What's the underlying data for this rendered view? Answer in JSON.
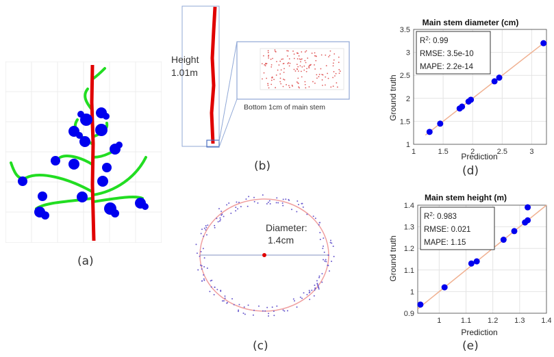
{
  "panels": {
    "a": {
      "label": "(a)"
    },
    "b": {
      "label": "(b)",
      "height_label": "Height",
      "height_value": "1.01m",
      "zoom_caption": "Bottom 1cm of main stem"
    },
    "c": {
      "label": "(c)",
      "diameter_label": "Diameter:",
      "diameter_value": "1.4cm"
    },
    "d": {
      "label": "(d)"
    },
    "e": {
      "label": "(e)"
    }
  },
  "colors": {
    "stem": "#e00000",
    "branch": "#22dd22",
    "flower": "#0000ee",
    "fit_line": "#f0b090",
    "marker": "#0000ee",
    "circle": "#f0a0a0",
    "points": "#6a5acd"
  },
  "chart_data": [
    {
      "id": "d",
      "type": "scatter",
      "title": "Main stem diameter (cm)",
      "xlabel": "Prediction",
      "ylabel": "Ground truth",
      "xlim": [
        1,
        3.25
      ],
      "ylim": [
        1,
        3.5
      ],
      "xticks": [
        1,
        1.5,
        2,
        2.5,
        3
      ],
      "xtick_labels": [
        "1",
        "1.5",
        "2",
        "2.5",
        "3"
      ],
      "yticks": [
        1,
        1.5,
        2,
        2.5,
        3,
        3.5
      ],
      "ytick_labels": [
        "1",
        "1.5",
        "2",
        "2.5",
        "3",
        "3.5"
      ],
      "fit_line": [
        [
          1.2,
          1.2
        ],
        [
          3.25,
          3.25
        ]
      ],
      "x": [
        1.27,
        1.45,
        1.78,
        1.82,
        1.93,
        1.97,
        2.37,
        2.45,
        3.2
      ],
      "y": [
        1.27,
        1.45,
        1.78,
        1.82,
        1.93,
        1.97,
        2.37,
        2.45,
        3.2
      ],
      "stats": {
        "r2_label": "R",
        "r2_sup": "2",
        "r2_value": ": 0.99",
        "rmse": "RMSE: 3.5e-10",
        "mape": "MAPE: 2.2e-14"
      }
    },
    {
      "id": "e",
      "type": "scatter",
      "title": "Main stem height (m)",
      "xlabel": "Prediction",
      "ylabel": "Ground truth",
      "xlim": [
        0.92,
        1.4
      ],
      "ylim": [
        0.9,
        1.4
      ],
      "xticks": [
        1,
        1.1,
        1.2,
        1.3,
        1.4
      ],
      "xtick_labels": [
        "1",
        "1.1",
        "1.2",
        "1.3",
        "1.4"
      ],
      "yticks": [
        0.9,
        1,
        1.1,
        1.2,
        1.3,
        1.4
      ],
      "ytick_labels": [
        "0.9",
        "1",
        "1.1",
        "1.2",
        "1.3",
        "1.4"
      ],
      "fit_line": [
        [
          0.92,
          0.92
        ],
        [
          1.4,
          1.4
        ]
      ],
      "x": [
        0.93,
        1.02,
        1.12,
        1.14,
        1.24,
        1.28,
        1.32,
        1.33,
        1.33
      ],
      "y": [
        0.94,
        1.02,
        1.13,
        1.14,
        1.24,
        1.28,
        1.32,
        1.33,
        1.39
      ],
      "stats": {
        "r2_label": "R",
        "r2_sup": "2",
        "r2_value": ": 0.983",
        "rmse": "RMSE: 0.021",
        "mape": "MAPE: 1.15"
      }
    }
  ]
}
